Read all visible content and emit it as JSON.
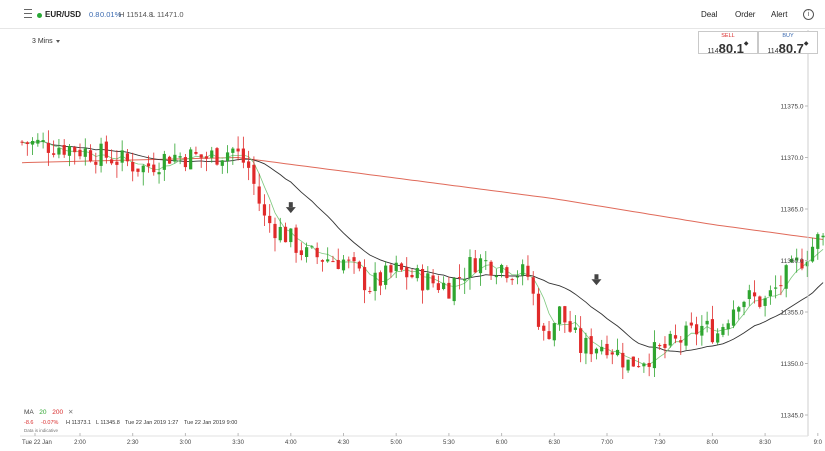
{
  "header": {
    "instrument": "EUR/USD",
    "change": "0.8",
    "change_pct": "0.01%",
    "high": "H 11514.8",
    "low": "L 11471.0",
    "buttons": {
      "deal": "Deal",
      "order": "Order",
      "alert": "Alert"
    },
    "info_icon": "info-icon",
    "info_glyph": "i"
  },
  "timeframe": "3 Mins",
  "deal_ticket": {
    "sell_label": "SELL",
    "sell_small": "114",
    "sell_big": "80.1",
    "sell_sup": "◆",
    "buy_label": "BUY",
    "buy_small": "114",
    "buy_big": "80.7",
    "buy_sup": "◆"
  },
  "footer": {
    "ma_label": "MA",
    "ma_fast": "20",
    "ma_slow": "200",
    "ma_close": "✕",
    "change": "-8.6",
    "change_pct": "-0.07%",
    "high": "H 11373.1",
    "low": "L 11345.8",
    "from": "Tue 22 Jan 2019 1:27",
    "to": "Tue 22 Jan 2019 9:00",
    "note": "Data is indicative"
  },
  "colors": {
    "up": "#2ea52f",
    "down": "#e02a2a",
    "ma_fast": "#7ec87e",
    "ma_mid": "#333333",
    "ma_slow": "#e06a5a",
    "arrow": "#444444",
    "sell_label": "#d92b2b",
    "buy_label": "#3b6ab0",
    "change_positive": "#3b6ab0",
    "change_negative": "#d92b2b"
  },
  "chart_data": {
    "type": "candlestick",
    "x_tick_labels": [
      "Tue 22 Jan",
      "2:00",
      "2:30",
      "3:00",
      "3:30",
      "4:00",
      "4:30",
      "5:00",
      "5:30",
      "6:00",
      "6:30",
      "7:00",
      "7:30",
      "8:00",
      "8:30",
      "9:0"
    ],
    "y_ticks": [
      11345.0,
      11350.0,
      11355.0,
      11360.0,
      11365.0,
      11370.0,
      11375.0
    ],
    "y_tick_labels": [
      "11345.0",
      "11350.0",
      "11355.0",
      "11360.0",
      "11365.0",
      "11370.0",
      "11375.0"
    ],
    "ylim": [
      11342.5,
      11380.0
    ],
    "time_range": [
      "1:27",
      "9:05"
    ],
    "bar_minutes": 3,
    "candles_anchor": [
      [
        1.45,
        11371.5
      ],
      [
        1.9,
        11371.0
      ],
      [
        2.3,
        11370.0
      ],
      [
        2.6,
        11369.0
      ],
      [
        2.85,
        11370.2
      ],
      [
        3.2,
        11370.0
      ],
      [
        3.45,
        11370.8
      ],
      [
        3.6,
        11369.0
      ],
      [
        3.75,
        11364.0
      ],
      [
        3.95,
        11362.5
      ],
      [
        4.15,
        11360.5
      ],
      [
        4.5,
        11360.0
      ],
      [
        4.75,
        11357.5
      ],
      [
        5.0,
        11359.0
      ],
      [
        5.3,
        11358.0
      ],
      [
        5.5,
        11357.5
      ],
      [
        5.75,
        11360.0
      ],
      [
        6.0,
        11359.5
      ],
      [
        6.25,
        11358.5
      ],
      [
        6.4,
        11352.5
      ],
      [
        6.55,
        11355.0
      ],
      [
        6.75,
        11351.5
      ],
      [
        7.0,
        11352.0
      ],
      [
        7.2,
        11350.0
      ],
      [
        7.45,
        11351.0
      ],
      [
        7.65,
        11352.0
      ],
      [
        7.9,
        11353.5
      ],
      [
        8.05,
        11353.0
      ],
      [
        8.25,
        11356.5
      ],
      [
        8.5,
        11356.0
      ],
      [
        8.75,
        11359.0
      ],
      [
        9.0,
        11362.0
      ],
      [
        9.08,
        11362.0
      ]
    ],
    "ma_slow_anchor": [
      [
        1.45,
        11369.5
      ],
      [
        3.5,
        11370.0
      ],
      [
        5.0,
        11368.0
      ],
      [
        6.5,
        11366.0
      ],
      [
        8.0,
        11363.5
      ],
      [
        9.08,
        11362.0
      ]
    ],
    "markers": [
      {
        "time": 4.0,
        "price": 11364.5,
        "symbol": "arrow-down"
      },
      {
        "time": 6.9,
        "price": 11357.5,
        "symbol": "arrow-down"
      }
    ]
  }
}
